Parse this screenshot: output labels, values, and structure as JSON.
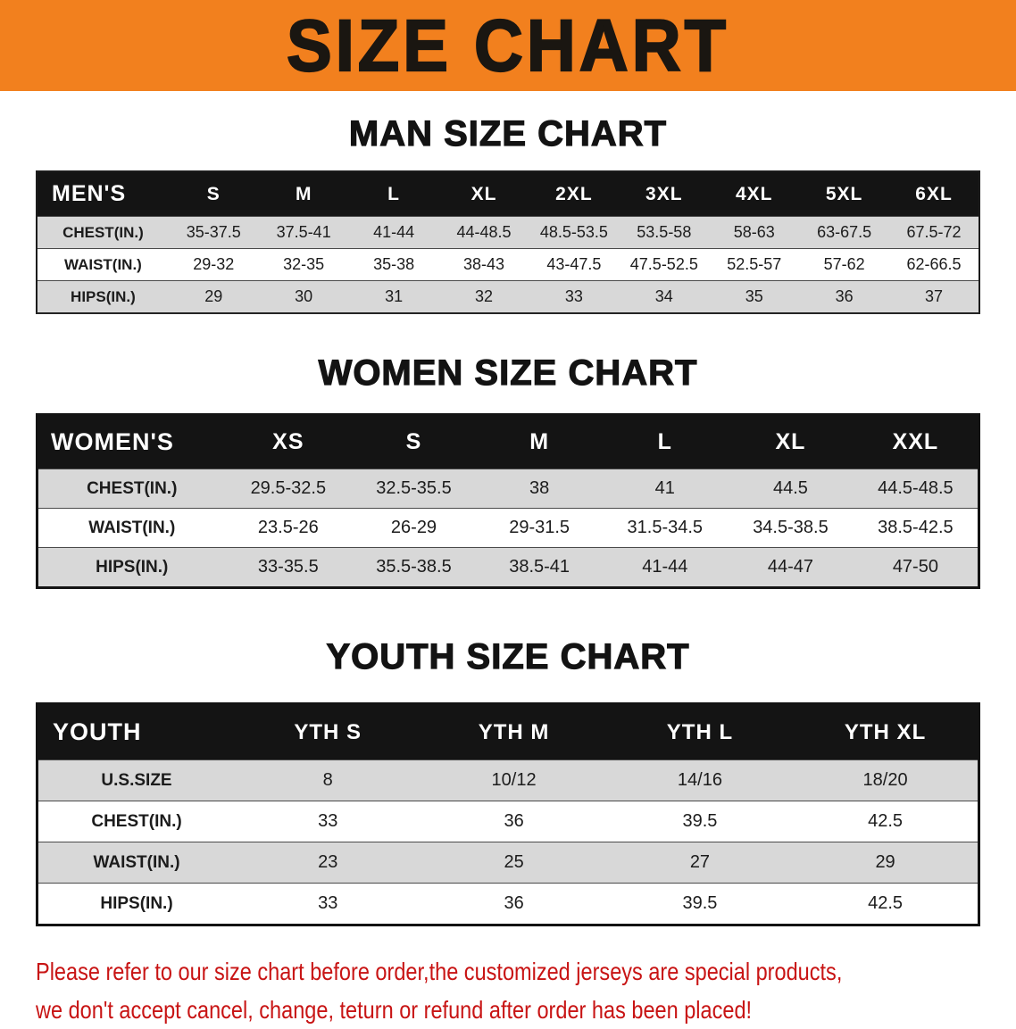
{
  "banner": {
    "title": "SIZE CHART"
  },
  "sections": [
    {
      "heading": "MAN SIZE CHART",
      "table": {
        "header": [
          "MEN'S",
          "S",
          "M",
          "L",
          "XL",
          "2XL",
          "3XL",
          "4XL",
          "5XL",
          "6XL"
        ],
        "rows": [
          [
            "CHEST(IN.)",
            "35-37.5",
            "37.5-41",
            "41-44",
            "44-48.5",
            "48.5-53.5",
            "53.5-58",
            "58-63",
            "63-67.5",
            "67.5-72"
          ],
          [
            "WAIST(IN.)",
            "29-32",
            "32-35",
            "35-38",
            "38-43",
            "43-47.5",
            "47.5-52.5",
            "52.5-57",
            "57-62",
            "62-66.5"
          ],
          [
            "HIPS(IN.)",
            "29",
            "30",
            "31",
            "32",
            "33",
            "34",
            "35",
            "36",
            "37"
          ]
        ]
      }
    },
    {
      "heading": "WOMEN SIZE CHART",
      "table": {
        "header": [
          "WOMEN'S",
          "XS",
          "S",
          "M",
          "L",
          "XL",
          "XXL"
        ],
        "rows": [
          [
            "CHEST(IN.)",
            "29.5-32.5",
            "32.5-35.5",
            "38",
            "41",
            "44.5",
            "44.5-48.5"
          ],
          [
            "WAIST(IN.)",
            "23.5-26",
            "26-29",
            "29-31.5",
            "31.5-34.5",
            "34.5-38.5",
            "38.5-42.5"
          ],
          [
            "HIPS(IN.)",
            "33-35.5",
            "35.5-38.5",
            "38.5-41",
            "41-44",
            "44-47",
            "47-50"
          ]
        ]
      }
    },
    {
      "heading": "YOUTH SIZE CHART",
      "table": {
        "header": [
          "YOUTH",
          "YTH S",
          "YTH M",
          "YTH L",
          "YTH XL"
        ],
        "rows": [
          [
            "U.S.SIZE",
            "8",
            "10/12",
            "14/16",
            "18/20"
          ],
          [
            "CHEST(IN.)",
            "33",
            "36",
            "39.5",
            "42.5"
          ],
          [
            "WAIST(IN.)",
            "23",
            "25",
            "27",
            "29"
          ],
          [
            "HIPS(IN.)",
            "33",
            "36",
            "39.5",
            "42.5"
          ]
        ]
      }
    }
  ],
  "footer": {
    "line1": "Please refer to our size chart before order,the customized jerseys are special products,",
    "line2": "we don't accept cancel, change, teturn or refund after order has been placed!"
  },
  "colors": {
    "banner_bg": "#f2801e",
    "title_color": "#1a1611",
    "header_bg": "#141414",
    "row_stripe": "#d8d8d8",
    "footer_text": "#c81414"
  }
}
